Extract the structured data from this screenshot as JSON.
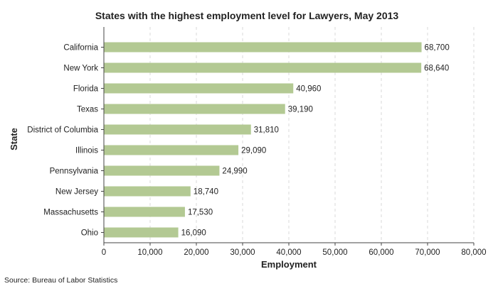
{
  "chart_data": {
    "type": "bar",
    "orientation": "horizontal",
    "title": "States with the highest employment level for Lawyers, May 2013",
    "xlabel": "Employment",
    "ylabel": "State",
    "categories": [
      "California",
      "New York",
      "Florida",
      "Texas",
      "District of Columbia",
      "Illinois",
      "Pennsylvania",
      "New Jersey",
      "Massachusetts",
      "Ohio"
    ],
    "values": [
      68700,
      68640,
      40960,
      39190,
      31810,
      29090,
      24990,
      18740,
      17530,
      16090
    ],
    "value_labels": [
      "68,700",
      "68,640",
      "40,960",
      "39,190",
      "31,810",
      "29,090",
      "24,990",
      "18,740",
      "17,530",
      "16,090"
    ],
    "xlim": [
      0,
      80000
    ],
    "xticks": [
      0,
      10000,
      20000,
      30000,
      40000,
      50000,
      60000,
      70000,
      80000
    ],
    "xtick_labels": [
      "0",
      "10,000",
      "20,000",
      "30,000",
      "40,000",
      "50,000",
      "60,000",
      "70,000",
      "80,000"
    ],
    "grid": true,
    "bar_color": "#b3c993"
  },
  "source": "Source: Bureau of Labor Statistics"
}
